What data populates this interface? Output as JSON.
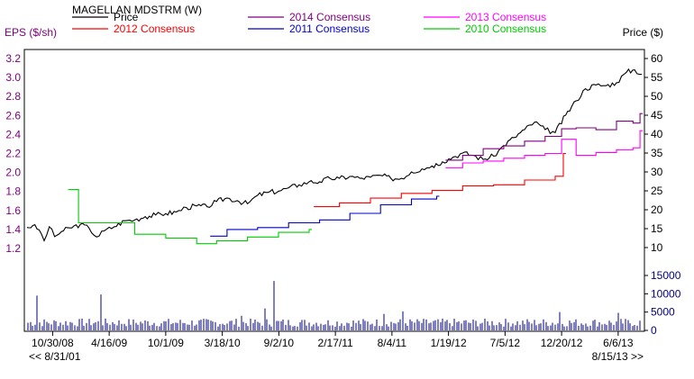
{
  "header": {
    "title": "MAGELLAN MDSTRM (W)",
    "left_axis_label": "EPS ($/sh)",
    "right_axis_label": "Price ($)",
    "nav_prev": "<< 8/31/01",
    "nav_next": "8/15/13 >>"
  },
  "chart_data": {
    "type": "line",
    "title": "MAGELLAN MDSTRM (W)",
    "xlabel": "",
    "ylabel": "EPS ($/sh)",
    "y2label": "Price ($)",
    "x_tick_labels": [
      "10/30/08",
      "4/16/09",
      "10/1/09",
      "3/18/10",
      "9/2/10",
      "2/17/11",
      "8/4/11",
      "1/19/12",
      "7/5/12",
      "12/20/12",
      "6/6/13"
    ],
    "ylim": [
      1.0,
      3.3
    ],
    "y_ticks": [
      1.2,
      1.4,
      1.6,
      1.8,
      2.0,
      2.2,
      2.4,
      2.6,
      2.8,
      3.0,
      3.2
    ],
    "y2lim": [
      7.25,
      62.5
    ],
    "y2_ticks": [
      10,
      15,
      20,
      25,
      30,
      35,
      40,
      45,
      50,
      55,
      60
    ],
    "volume_ticks": [
      0,
      5000,
      10000,
      15000
    ],
    "volume_lim": [
      0,
      16000
    ],
    "grid": false,
    "legend_position": "top",
    "series": [
      {
        "name": "Price",
        "axis": "price",
        "color": "#000000",
        "points": [
          [
            "2008-08-15",
            15.3
          ],
          [
            "2008-09-01",
            15.8
          ],
          [
            "2008-09-20",
            14.7
          ],
          [
            "2008-10-05",
            11.8
          ],
          [
            "2008-10-20",
            15.5
          ],
          [
            "2008-11-05",
            12.9
          ],
          [
            "2008-11-25",
            14.2
          ],
          [
            "2008-12-20",
            15.2
          ],
          [
            "2009-01-20",
            16.1
          ],
          [
            "2009-02-15",
            15.2
          ],
          [
            "2009-03-10",
            12.8
          ],
          [
            "2009-04-01",
            14.4
          ],
          [
            "2009-05-01",
            15.5
          ],
          [
            "2009-06-01",
            17.1
          ],
          [
            "2009-07-01",
            17.3
          ],
          [
            "2009-08-01",
            18.2
          ],
          [
            "2009-09-01",
            18.6
          ],
          [
            "2009-10-01",
            19.0
          ],
          [
            "2009-11-01",
            19.4
          ],
          [
            "2009-12-01",
            20.6
          ],
          [
            "2010-01-01",
            21.0
          ],
          [
            "2010-02-01",
            20.8
          ],
          [
            "2010-03-01",
            22.2
          ],
          [
            "2010-04-01",
            23.1
          ],
          [
            "2010-05-01",
            22.4
          ],
          [
            "2010-06-01",
            21.6
          ],
          [
            "2010-07-01",
            23.8
          ],
          [
            "2010-08-01",
            24.6
          ],
          [
            "2010-09-01",
            24.9
          ],
          [
            "2010-10-01",
            25.8
          ],
          [
            "2010-11-01",
            26.6
          ],
          [
            "2010-12-01",
            27.4
          ],
          [
            "2011-01-01",
            27.4
          ],
          [
            "2011-02-01",
            28.3
          ],
          [
            "2011-03-01",
            28.3
          ],
          [
            "2011-04-01",
            28.8
          ],
          [
            "2011-05-01",
            28.3
          ],
          [
            "2011-06-01",
            28.6
          ],
          [
            "2011-07-01",
            29.1
          ],
          [
            "2011-08-01",
            28.3
          ],
          [
            "2011-09-01",
            28.3
          ],
          [
            "2011-10-01",
            30.0
          ],
          [
            "2011-11-01",
            30.8
          ],
          [
            "2011-12-01",
            31.6
          ],
          [
            "2012-01-01",
            32.7
          ],
          [
            "2012-02-01",
            33.9
          ],
          [
            "2012-03-01",
            35.0
          ],
          [
            "2012-04-01",
            34.4
          ],
          [
            "2012-05-01",
            33.3
          ],
          [
            "2012-06-01",
            34.2
          ],
          [
            "2012-07-01",
            37.0
          ],
          [
            "2012-08-01",
            39.1
          ],
          [
            "2012-09-01",
            41.2
          ],
          [
            "2012-10-01",
            43.2
          ],
          [
            "2012-11-01",
            41.2
          ],
          [
            "2012-12-01",
            40.4
          ],
          [
            "2013-01-01",
            45.0
          ],
          [
            "2013-02-01",
            48.8
          ],
          [
            "2013-03-01",
            52.0
          ],
          [
            "2013-04-01",
            53.0
          ],
          [
            "2013-05-01",
            52.8
          ],
          [
            "2013-06-01",
            53.6
          ],
          [
            "2013-07-01",
            56.4
          ],
          [
            "2013-07-25",
            57.0
          ],
          [
            "2013-08-15",
            55.8
          ]
        ]
      },
      {
        "name": "2014 Consensus",
        "axis": "eps",
        "color": "#800080",
        "points": [
          [
            "2012-01-10",
            2.13
          ],
          [
            "2012-03-01",
            2.18
          ],
          [
            "2012-05-01",
            2.25
          ],
          [
            "2012-07-01",
            2.28
          ],
          [
            "2012-09-01",
            2.33
          ],
          [
            "2012-11-01",
            2.38
          ],
          [
            "2012-12-20",
            2.46
          ],
          [
            "2013-02-01",
            2.47
          ],
          [
            "2013-04-01",
            2.45
          ],
          [
            "2013-06-01",
            2.54
          ],
          [
            "2013-07-20",
            2.52
          ],
          [
            "2013-08-10",
            2.62
          ]
        ]
      },
      {
        "name": "2013 Consensus",
        "axis": "eps",
        "color": "#ff00ff",
        "points": [
          [
            "2012-01-10",
            2.05
          ],
          [
            "2012-03-01",
            2.1
          ],
          [
            "2012-05-01",
            2.12
          ],
          [
            "2012-07-01",
            2.15
          ],
          [
            "2012-09-01",
            2.18
          ],
          [
            "2012-11-01",
            2.2
          ],
          [
            "2012-12-20",
            2.35
          ],
          [
            "2013-02-01",
            2.18
          ],
          [
            "2013-04-01",
            2.21
          ],
          [
            "2013-06-01",
            2.24
          ],
          [
            "2013-07-20",
            2.26
          ],
          [
            "2013-08-10",
            2.44
          ]
        ]
      },
      {
        "name": "2012 Consensus",
        "axis": "eps",
        "color": "#ff0000",
        "points": [
          [
            "2010-12-15",
            1.64
          ],
          [
            "2011-03-01",
            1.68
          ],
          [
            "2011-06-01",
            1.73
          ],
          [
            "2011-09-01",
            1.78
          ],
          [
            "2011-12-01",
            1.81
          ],
          [
            "2012-03-01",
            1.86
          ],
          [
            "2012-06-01",
            1.87
          ],
          [
            "2012-09-01",
            1.92
          ],
          [
            "2012-12-01",
            1.96
          ],
          [
            "2012-12-25",
            2.2
          ]
        ]
      },
      {
        "name": "2011 Consensus",
        "axis": "eps",
        "color": "#0000cc",
        "points": [
          [
            "2010-02-10",
            1.33
          ],
          [
            "2010-04-01",
            1.4
          ],
          [
            "2010-07-01",
            1.42
          ],
          [
            "2010-10-01",
            1.47
          ],
          [
            "2011-01-01",
            1.5
          ],
          [
            "2011-04-01",
            1.57
          ],
          [
            "2011-07-01",
            1.66
          ],
          [
            "2011-10-01",
            1.72
          ],
          [
            "2011-12-15",
            1.75
          ]
        ]
      },
      {
        "name": "2010 Consensus",
        "axis": "eps",
        "color": "#00cc00",
        "points": [
          [
            "2008-12-15",
            1.82
          ],
          [
            "2009-01-15",
            1.47
          ],
          [
            "2009-04-01",
            1.47
          ],
          [
            "2009-07-01",
            1.35
          ],
          [
            "2009-10-01",
            1.31
          ],
          [
            "2010-01-01",
            1.25
          ],
          [
            "2010-03-01",
            1.28
          ],
          [
            "2010-06-01",
            1.32
          ],
          [
            "2010-09-01",
            1.37
          ],
          [
            "2010-12-01",
            1.4
          ]
        ]
      }
    ],
    "volume": {
      "color": "#000080",
      "spikes": [
        [
          "2008-09-15",
          9500
        ],
        [
          "2009-03-20",
          9800
        ],
        [
          "2010-05-15",
          4000
        ],
        [
          "2010-08-20",
          13500
        ],
        [
          "2010-07-20",
          6000
        ],
        [
          "2011-07-10",
          4500
        ],
        [
          "2011-09-05",
          5200
        ],
        [
          "2012-12-15",
          5000
        ],
        [
          "2013-06-10",
          4800
        ]
      ],
      "baseline": 2500
    }
  }
}
